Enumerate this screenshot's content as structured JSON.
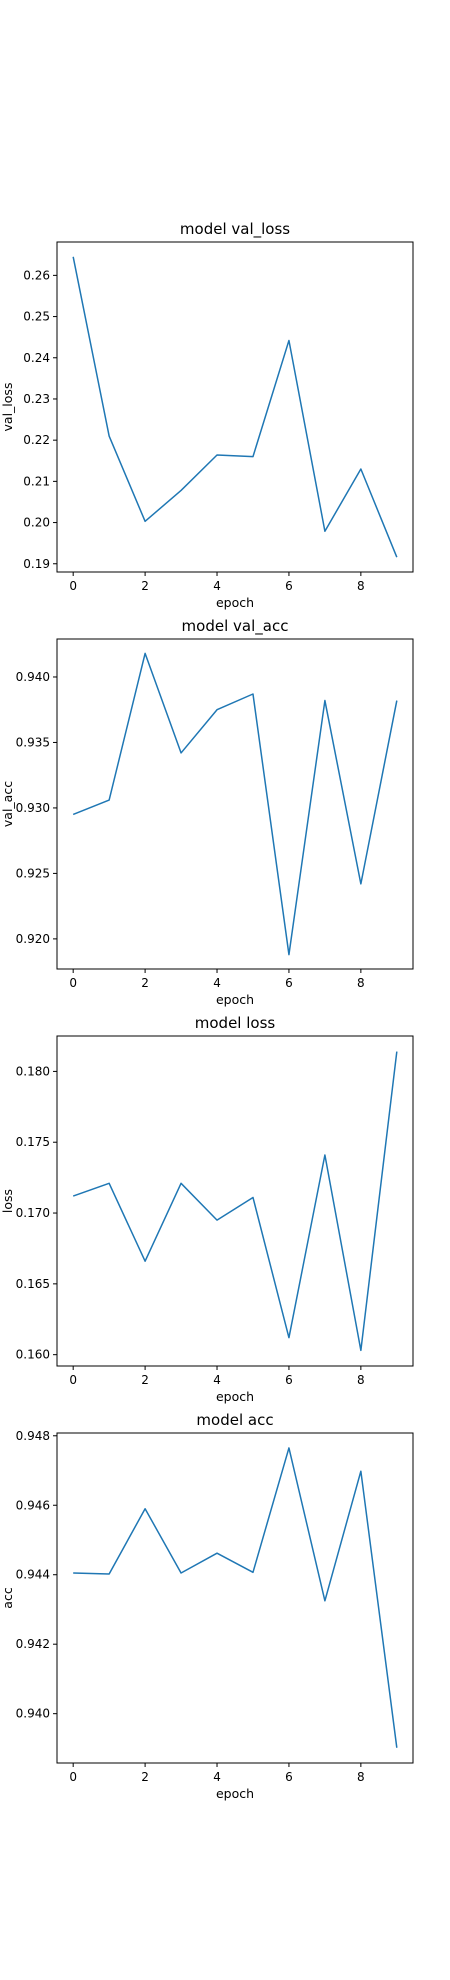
{
  "chart_data": [
    {
      "type": "line",
      "title": "model val_loss",
      "xlabel": "epoch",
      "ylabel": "val_loss",
      "x": [
        0,
        1,
        2,
        3,
        4,
        5,
        6,
        7,
        8,
        9
      ],
      "series": [
        {
          "values": [
            0.2645,
            0.221,
            0.2003,
            0.2078,
            0.2164,
            0.216,
            0.2442,
            0.1979,
            0.213,
            0.1916
          ]
        }
      ],
      "xticks": [
        "0",
        "2",
        "4",
        "6",
        "8"
      ],
      "yticks": [
        "0.19",
        "0.20",
        "0.21",
        "0.22",
        "0.23",
        "0.24",
        "0.25",
        "0.26"
      ],
      "xlim": [
        -0.45,
        9.45
      ],
      "ylim": [
        0.188,
        0.2681
      ],
      "grid": false,
      "color": "#1f77b4"
    },
    {
      "type": "line",
      "title": "model val_acc",
      "xlabel": "epoch",
      "ylabel": "val_acc",
      "x": [
        0,
        1,
        2,
        3,
        4,
        5,
        6,
        7,
        8,
        9
      ],
      "series": [
        {
          "values": [
            0.9295,
            0.9306,
            0.9418,
            0.9342,
            0.9375,
            0.9387,
            0.9188,
            0.9382,
            0.9242,
            0.9382
          ]
        }
      ],
      "xticks": [
        "0",
        "2",
        "4",
        "6",
        "8"
      ],
      "yticks": [
        "0.920",
        "0.925",
        "0.930",
        "0.935",
        "0.940"
      ],
      "xlim": [
        -0.45,
        9.45
      ],
      "ylim": [
        0.9177,
        0.9429
      ],
      "grid": false,
      "color": "#1f77b4"
    },
    {
      "type": "line",
      "title": "model loss",
      "xlabel": "epoch",
      "ylabel": "loss",
      "x": [
        0,
        1,
        2,
        3,
        4,
        5,
        6,
        7,
        8,
        9
      ],
      "series": [
        {
          "values": [
            0.1712,
            0.1721,
            0.1666,
            0.1721,
            0.1695,
            0.1711,
            0.1612,
            0.1741,
            0.1603,
            0.1814
          ]
        }
      ],
      "xticks": [
        "0",
        "2",
        "4",
        "6",
        "8"
      ],
      "yticks": [
        "0.160",
        "0.165",
        "0.170",
        "0.175",
        "0.180"
      ],
      "xlim": [
        -0.45,
        9.45
      ],
      "ylim": [
        0.1592,
        0.1825
      ],
      "grid": false,
      "color": "#1f77b4"
    },
    {
      "type": "line",
      "title": "model acc",
      "xlabel": "epoch",
      "ylabel": "acc",
      "x": [
        0,
        1,
        2,
        3,
        4,
        5,
        6,
        7,
        8,
        9
      ],
      "series": [
        {
          "values": [
            0.94405,
            0.94402,
            0.9459,
            0.94405,
            0.94462,
            0.94407,
            0.94765,
            0.94325,
            0.94698,
            0.93902
          ]
        }
      ],
      "xticks": [
        "0",
        "2",
        "4",
        "6",
        "8"
      ],
      "yticks": [
        "0.940",
        "0.942",
        "0.944",
        "0.946",
        "0.948"
      ],
      "xlim": [
        -0.45,
        9.45
      ],
      "ylim": [
        0.93858,
        0.94808
      ],
      "grid": false,
      "color": "#1f77b4"
    }
  ]
}
